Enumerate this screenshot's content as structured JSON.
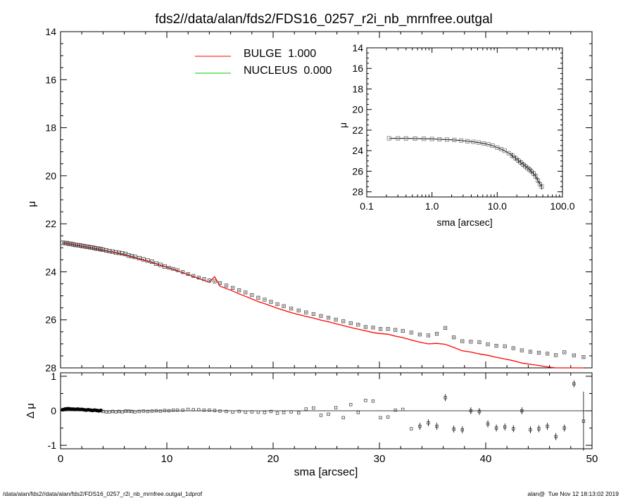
{
  "title": "fds2//data/alan/fds2/FDS16_0257_r2i_nb_mrnfree.outgal",
  "footer": {
    "left": "/data/alan/fds2//data/alan/fds2/FDS16_0257_r2i_nb_mrnfree.outgal_1dprof",
    "right": "alan@  Tue Nov 12 18:13:02 2019"
  },
  "colors": {
    "bulge": "#ff0000",
    "nucleus": "#00cc00",
    "data": "#000000"
  },
  "chart_data": [
    {
      "type": "scatter",
      "ylabel": "μ",
      "xlim": [
        0,
        50
      ],
      "ylim": [
        28,
        14
      ],
      "yticks": [
        14,
        16,
        18,
        20,
        22,
        24,
        26,
        28
      ],
      "ytick_labels": [
        "14",
        "16",
        "18",
        "20",
        "22",
        "24",
        "26",
        "28"
      ],
      "legend_position": "top-center",
      "legend": [
        {
          "name": "BULGE  1.000",
          "color": "#ff0000"
        },
        {
          "name": "NUCLEUS  0.000",
          "color": "#00cc00"
        }
      ],
      "series": [
        {
          "name": "data",
          "x": [
            0.2,
            0.4,
            0.6,
            0.8,
            1.0,
            1.2,
            1.4,
            1.6,
            1.8,
            2.0,
            2.2,
            2.4,
            2.6,
            2.8,
            3.0,
            3.2,
            3.4,
            3.6,
            3.8,
            4.0,
            4.3,
            4.6,
            4.9,
            5.2,
            5.5,
            5.8,
            6.1,
            6.4,
            6.7,
            7.0,
            7.4,
            7.8,
            8.2,
            8.6,
            9.0,
            9.4,
            9.8,
            10.2,
            10.6,
            11.0,
            11.5,
            12.0,
            12.5,
            13.0,
            13.5,
            14.0,
            14.5,
            15.0,
            15.6,
            16.2,
            16.8,
            17.4,
            18.0,
            18.6,
            19.2,
            19.8,
            20.4,
            21.0,
            21.7,
            22.4,
            23.1,
            23.8,
            24.5,
            25.2,
            25.9,
            26.6,
            27.3,
            28.0,
            28.7,
            29.4,
            30.1,
            30.8,
            31.5,
            32.2,
            33.0,
            33.8,
            34.6,
            35.4,
            36.2,
            37.0,
            37.8,
            38.6,
            39.4,
            40.2,
            41.0,
            41.8,
            42.6,
            43.4,
            44.2,
            45.0,
            45.8,
            46.6,
            47.4,
            48.3,
            49.2
          ],
          "y": [
            22.79,
            22.8,
            22.81,
            22.83,
            22.84,
            22.86,
            22.88,
            22.89,
            22.9,
            22.92,
            22.93,
            22.95,
            22.96,
            22.98,
            22.99,
            23.01,
            23.03,
            23.04,
            23.06,
            23.08,
            23.11,
            23.14,
            23.16,
            23.19,
            23.21,
            23.23,
            23.26,
            23.32,
            23.35,
            23.38,
            23.43,
            23.48,
            23.53,
            23.58,
            23.66,
            23.71,
            23.78,
            23.83,
            23.88,
            23.93,
            24.01,
            24.09,
            24.17,
            24.24,
            24.3,
            24.36,
            24.4,
            24.47,
            24.57,
            24.67,
            24.77,
            24.86,
            24.97,
            25.08,
            25.16,
            25.25,
            25.35,
            25.43,
            25.53,
            25.61,
            25.69,
            25.76,
            25.84,
            25.91,
            25.99,
            26.06,
            26.14,
            26.2,
            26.3,
            26.32,
            26.38,
            26.38,
            26.42,
            26.46,
            26.53,
            26.61,
            26.65,
            26.58,
            26.34,
            26.73,
            26.89,
            26.91,
            26.93,
            27.02,
            27.08,
            27.1,
            27.18,
            27.27,
            27.33,
            27.37,
            27.41,
            27.47,
            27.35,
            27.48,
            27.55
          ]
        },
        {
          "name": "BULGE  1.000",
          "x": [
            0.2,
            0.4,
            0.6,
            0.8,
            1.0,
            1.2,
            1.4,
            1.6,
            1.8,
            2.0,
            2.2,
            2.4,
            2.6,
            2.8,
            3.0,
            3.2,
            3.4,
            3.6,
            3.8,
            4.0,
            4.3,
            4.6,
            4.9,
            5.2,
            5.5,
            5.8,
            6.1,
            6.4,
            6.7,
            7.0,
            7.4,
            7.8,
            8.2,
            8.6,
            9.0,
            9.4,
            9.8,
            10.2,
            10.6,
            11.0,
            11.5,
            12.0,
            12.5,
            13.0,
            13.5,
            14.0,
            14.5,
            15.0,
            15.6,
            16.2,
            16.8,
            17.4,
            18.0,
            18.6,
            19.2,
            19.8,
            20.4,
            21.0,
            21.7,
            22.4,
            23.1,
            23.8,
            24.5,
            25.2,
            25.9,
            26.6,
            27.3,
            28.0,
            28.7,
            29.4,
            30.1,
            30.8,
            31.5,
            32.2,
            33.0,
            33.8,
            34.6,
            35.4,
            36.2,
            37.0,
            37.8,
            38.6,
            39.4,
            40.2,
            41.0,
            41.8,
            42.6,
            43.4,
            44.2,
            45.0,
            45.8,
            46.6,
            47.4,
            48.3,
            49.2
          ],
          "y": [
            22.8,
            22.81,
            22.82,
            22.84,
            22.85,
            22.87,
            22.89,
            22.9,
            22.92,
            22.93,
            22.95,
            22.96,
            22.98,
            23.0,
            23.01,
            23.03,
            23.05,
            23.06,
            23.08,
            23.1,
            23.13,
            23.16,
            23.18,
            23.21,
            23.24,
            23.27,
            23.3,
            23.34,
            23.37,
            23.41,
            23.46,
            23.51,
            23.56,
            23.61,
            23.67,
            23.73,
            23.78,
            23.84,
            23.89,
            23.96,
            24.04,
            24.12,
            24.2,
            24.28,
            24.36,
            24.44,
            24.2,
            24.6,
            24.7,
            24.8,
            24.92,
            25.02,
            25.13,
            25.24,
            25.33,
            25.42,
            25.52,
            25.6,
            25.7,
            25.78,
            25.86,
            25.93,
            26.01,
            26.08,
            26.16,
            26.24,
            26.32,
            26.39,
            26.46,
            26.53,
            26.57,
            26.6,
            26.68,
            26.74,
            26.84,
            26.93,
            27.0,
            26.98,
            27.02,
            27.15,
            27.29,
            27.34,
            27.42,
            27.48,
            27.56,
            27.63,
            27.7,
            27.8,
            27.85,
            27.9,
            27.96,
            28.05,
            28.14,
            28.22,
            28.35
          ]
        }
      ]
    },
    {
      "type": "scatter",
      "xlabel": "sma [arcsec]",
      "ylabel": "μ",
      "xscale": "log",
      "xlim": [
        0.1,
        100
      ],
      "ylim": [
        28.5,
        14
      ],
      "xticks": [
        0.1,
        1.0,
        10.0,
        100.0
      ],
      "xtick_labels": [
        "0.1",
        "1.0",
        "10.0",
        "100.0"
      ],
      "yticks": [
        14,
        16,
        18,
        20,
        22,
        24,
        26,
        28
      ],
      "ytick_labels": [
        "14",
        "16",
        "18",
        "20",
        "22",
        "24",
        "26",
        "28"
      ],
      "series": [
        {
          "name": "data",
          "x": [
            0.22,
            0.3,
            0.4,
            0.55,
            0.75,
            1.0,
            1.3,
            1.7,
            2.2,
            2.8,
            3.5,
            4.3,
            5.2,
            6.2,
            7.3,
            8.5,
            10,
            11.5,
            13,
            15,
            17,
            19,
            21,
            23,
            25,
            27,
            29,
            31,
            33,
            36,
            39,
            42,
            45,
            48
          ],
          "y": [
            22.8,
            22.8,
            22.81,
            22.82,
            22.84,
            22.86,
            22.89,
            22.92,
            22.96,
            23.01,
            23.08,
            23.14,
            23.21,
            23.3,
            23.39,
            23.52,
            23.7,
            23.85,
            24.01,
            24.24,
            24.48,
            24.72,
            24.95,
            25.15,
            25.35,
            25.52,
            25.69,
            25.83,
            25.98,
            26.22,
            26.5,
            26.9,
            27.25,
            27.5
          ]
        }
      ]
    },
    {
      "type": "scatter",
      "xlabel": "sma [arcsec]",
      "ylabel": "Δ μ",
      "xlim": [
        0,
        50
      ],
      "ylim": [
        -1.1,
        1.1
      ],
      "xticks": [
        0,
        10,
        20,
        30,
        40,
        50
      ],
      "xtick_labels": [
        "0",
        "10",
        "20",
        "30",
        "40",
        "50"
      ],
      "yticks": [
        -1,
        0,
        1
      ],
      "ytick_labels": [
        "-1",
        "0",
        "1"
      ],
      "series": [
        {
          "name": "residual",
          "x": [
            0.2,
            0.4,
            0.6,
            0.8,
            1.0,
            1.2,
            1.4,
            1.6,
            1.8,
            2.0,
            2.2,
            2.4,
            2.6,
            2.8,
            3.0,
            3.2,
            3.4,
            3.6,
            3.8,
            4.0,
            4.3,
            4.6,
            4.9,
            5.2,
            5.5,
            5.8,
            6.1,
            6.4,
            6.7,
            7.0,
            7.4,
            7.8,
            8.2,
            8.6,
            9.0,
            9.4,
            9.8,
            10.2,
            10.6,
            11.0,
            11.5,
            12.0,
            12.5,
            13.0,
            13.5,
            14.0,
            14.5,
            15.0,
            15.6,
            16.2,
            16.8,
            17.4,
            18.0,
            18.6,
            19.2,
            19.8,
            20.4,
            21.0,
            21.7,
            22.4,
            23.1,
            23.8,
            24.5,
            25.2,
            25.9,
            26.6,
            27.3,
            28.0,
            28.7,
            29.4,
            30.1,
            30.8,
            31.5,
            32.2,
            33.0,
            33.8,
            34.6,
            35.4,
            36.2,
            37.0,
            37.8,
            38.6,
            39.4,
            40.2,
            41.0,
            41.8,
            42.6,
            43.4,
            44.2,
            45.0,
            45.8,
            46.6,
            47.4,
            48.3,
            49.2
          ],
          "y": [
            0.03,
            0.05,
            0.06,
            0.06,
            0.05,
            0.05,
            0.04,
            0.05,
            0.04,
            0.04,
            0.03,
            0.02,
            0.03,
            0.02,
            0.01,
            0.02,
            0.01,
            0.0,
            0.01,
            -0.02,
            -0.03,
            -0.03,
            -0.02,
            -0.03,
            -0.02,
            -0.03,
            -0.01,
            -0.01,
            -0.02,
            -0.03,
            -0.02,
            -0.01,
            -0.02,
            -0.01,
            0.0,
            -0.01,
            0.01,
            0.0,
            0.02,
            0.02,
            0.02,
            0.04,
            0.03,
            0.03,
            0.02,
            0.02,
            0.01,
            -0.01,
            -0.02,
            -0.04,
            -0.02,
            -0.04,
            -0.03,
            -0.04,
            -0.05,
            -0.02,
            -0.07,
            -0.05,
            -0.03,
            -0.06,
            0.05,
            0.08,
            -0.13,
            -0.1,
            0.09,
            -0.2,
            0.18,
            -0.05,
            0.3,
            0.28,
            -0.2,
            -0.18,
            0.02,
            0.04,
            -0.52,
            -0.45,
            -0.35,
            -0.45,
            0.38,
            -0.53,
            -0.55,
            0.0,
            -0.02,
            -0.38,
            -0.5,
            -0.47,
            -0.52,
            0.0,
            -0.55,
            -0.52,
            -0.45,
            -0.75,
            -0.5,
            0.78,
            -0.3
          ]
        }
      ]
    }
  ]
}
